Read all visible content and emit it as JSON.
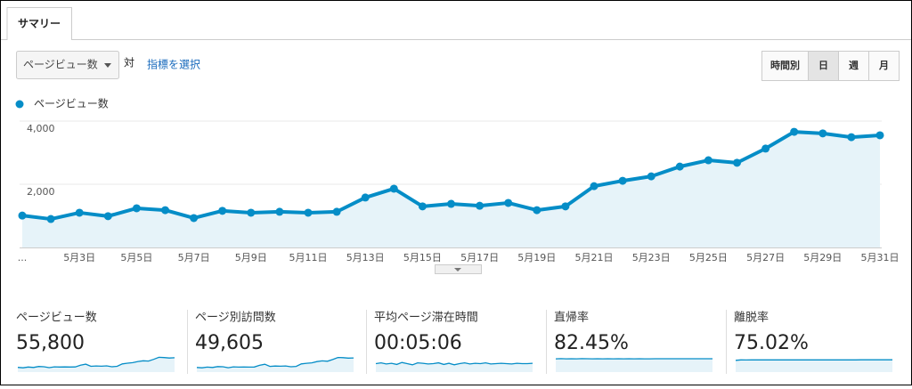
{
  "tabs": [
    "サマリー"
  ],
  "metric_selector": {
    "dropdown": "ページビュー数",
    "versus": "対",
    "link": "指標を選択"
  },
  "time_buttons": [
    "時間別",
    "日",
    "週",
    "月"
  ],
  "active_time_button": 1,
  "chart_data": {
    "type": "area",
    "series": [
      {
        "name": "ページビュー数",
        "color": "#058dc7",
        "values": [
          1010,
          900,
          1100,
          990,
          1240,
          1180,
          930,
          1160,
          1100,
          1130,
          1100,
          1130,
          1580,
          1860,
          1300,
          1380,
          1320,
          1410,
          1180,
          1300,
          1940,
          2110,
          2250,
          2560,
          2760,
          2680,
          3130,
          3660,
          3610,
          3490,
          3550
        ]
      }
    ],
    "categories": [
      "...",
      null,
      "5月3日",
      null,
      "5月5日",
      null,
      "5月7日",
      null,
      "5月9日",
      null,
      "5月11日",
      null,
      "5月13日",
      null,
      "5月15日",
      null,
      "5月17日",
      null,
      "5月19日",
      null,
      "5月21日",
      null,
      "5月23日",
      null,
      "5月25日",
      null,
      "5月27日",
      null,
      "5月29日",
      null,
      "5月31日"
    ],
    "ylim": [
      0,
      4000
    ],
    "yticks": [
      {
        "value": 2000,
        "label": "2,000"
      },
      {
        "value": 4000,
        "label": "4,000"
      }
    ],
    "grid": true,
    "fill_color": "#e6f3f9"
  },
  "metrics": [
    {
      "label": "ページビュー数",
      "value": "55,800",
      "sparkline_ylim": [
        0,
        4000
      ],
      "sparkline": [
        1010,
        900,
        1100,
        990,
        1240,
        1180,
        930,
        1160,
        1100,
        1130,
        1100,
        1130,
        1580,
        1860,
        1300,
        1380,
        1320,
        1410,
        1180,
        1300,
        1940,
        2110,
        2250,
        2560,
        2760,
        2680,
        3130,
        3660,
        3610,
        3490,
        3550
      ]
    },
    {
      "label": "ページ別訪問数",
      "value": "49,605",
      "sparkline_ylim": [
        0,
        3600
      ],
      "sparkline": [
        900,
        800,
        980,
        880,
        1100,
        1050,
        830,
        1030,
        980,
        1000,
        980,
        1000,
        1400,
        1650,
        1150,
        1230,
        1180,
        1250,
        1050,
        1150,
        1730,
        1880,
        2000,
        2280,
        2460,
        2380,
        2780,
        3260,
        3210,
        3110,
        3160
      ]
    },
    {
      "label": "平均ページ滞在時間",
      "value": "00:05:06",
      "sparkline_ylim": [
        200,
        400
      ],
      "sparkline": [
        300,
        310,
        295,
        305,
        290,
        315,
        300,
        285,
        310,
        305,
        295,
        300,
        310,
        290,
        305,
        285,
        300,
        310,
        295,
        305,
        300,
        310,
        295,
        300,
        305,
        300,
        295,
        305,
        300,
        300,
        305
      ]
    },
    {
      "label": "直帰率",
      "value": "82.45%",
      "sparkline_ylim": [
        0,
        100
      ],
      "sparkline": [
        82,
        83,
        82,
        82.5,
        82,
        83,
        82.5,
        82,
        82.5,
        82,
        82.5,
        82,
        82.5,
        82,
        82.5,
        82,
        82.5,
        82,
        82,
        82.5,
        82.5,
        82.5,
        82.5,
        82.5,
        82.5,
        82.5,
        82.5,
        82.5,
        82.5,
        82.5,
        82.5
      ]
    },
    {
      "label": "離脱率",
      "value": "75.02%",
      "sparkline_ylim": [
        0,
        100
      ],
      "sparkline": [
        72,
        75,
        74,
        75,
        75,
        74.5,
        75,
        75,
        75,
        74.5,
        75,
        75,
        75,
        75,
        75,
        74.5,
        75,
        75,
        75,
        75,
        75,
        75,
        75,
        75,
        75.5,
        75.5,
        75.5,
        75.5,
        75.5,
        75.5,
        75.5
      ]
    }
  ]
}
